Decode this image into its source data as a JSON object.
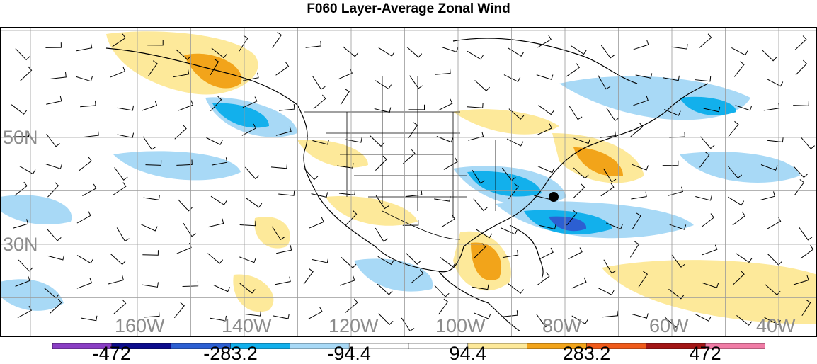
{
  "title": "F060 Layer-Average Zonal Wind",
  "map": {
    "lat_labels": [
      {
        "text": "50N",
        "lat": 50
      },
      {
        "text": "30N",
        "lat": 30
      }
    ],
    "lon_labels": [
      {
        "text": "160W",
        "lon": -160
      },
      {
        "text": "140W",
        "lon": -140
      },
      {
        "text": "120W",
        "lon": -120
      },
      {
        "text": "100W",
        "lon": -100
      },
      {
        "text": "80W",
        "lon": -80
      },
      {
        "text": "60W",
        "lon": -60
      },
      {
        "text": "40W",
        "lon": -40
      }
    ]
  },
  "colorbar": {
    "colors": [
      "#8a3ec4",
      "#0c0c8c",
      "#2c5fd2",
      "#12b0ec",
      "#a8d9f6",
      "#ffffff",
      "#ffffff",
      "#fde99a",
      "#f2a41a",
      "#ef5a1a",
      "#a31616",
      "#f07ca6"
    ],
    "labels": [
      "-472",
      "-283.2",
      "-94.4",
      "94.4",
      "283.2",
      "472"
    ]
  }
}
